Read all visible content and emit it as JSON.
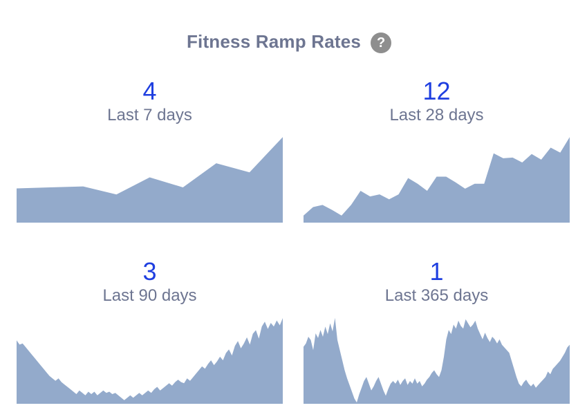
{
  "header": {
    "title": "Fitness Ramp Rates",
    "help_glyph": "?"
  },
  "fill_color": "#93aacb",
  "panels": [
    {
      "value": "4",
      "label": "Last 7 days",
      "series": [
        34,
        35,
        36,
        28,
        45,
        35,
        59,
        50,
        85
      ]
    },
    {
      "value": "12",
      "label": "Last 28 days",
      "series": [
        10,
        22,
        25,
        18,
        10,
        25,
        45,
        37,
        40,
        33,
        40,
        63,
        55,
        45,
        65,
        65,
        57,
        48,
        55,
        55,
        98,
        91,
        92,
        85,
        97,
        89,
        106,
        99,
        121
      ]
    },
    {
      "value": "3",
      "label": "Last 90 days",
      "series": [
        105,
        98,
        100,
        94,
        88,
        82,
        76,
        70,
        64,
        58,
        52,
        46,
        42,
        38,
        42,
        36,
        32,
        28,
        24,
        20,
        16,
        22,
        18,
        14,
        20,
        16,
        20,
        14,
        18,
        22,
        18,
        20,
        16,
        18,
        14,
        10,
        6,
        10,
        14,
        10,
        14,
        18,
        14,
        18,
        22,
        18,
        24,
        28,
        22,
        26,
        30,
        34,
        30,
        36,
        40,
        36,
        34,
        42,
        38,
        44,
        50,
        56,
        62,
        58,
        66,
        72,
        64,
        70,
        78,
        72,
        84,
        90,
        80,
        96,
        104,
        92,
        100,
        110,
        98,
        116,
        122,
        108,
        128,
        136,
        124,
        134,
        128,
        138,
        130,
        142
      ],
      "ymax": 150
    },
    {
      "value": "1",
      "label": "Last 365 days",
      "series": [
        85,
        90,
        100,
        95,
        80,
        105,
        98,
        110,
        100,
        115,
        104,
        120,
        108,
        128,
        95,
        80,
        65,
        50,
        38,
        28,
        18,
        8,
        2,
        14,
        24,
        34,
        40,
        30,
        20,
        26,
        34,
        40,
        30,
        20,
        12,
        22,
        30,
        34,
        30,
        36,
        28,
        34,
        38,
        28,
        34,
        30,
        38,
        30,
        34,
        26,
        30,
        36,
        40,
        46,
        50,
        44,
        40,
        50,
        70,
        96,
        110,
        104,
        118,
        112,
        124,
        116,
        112,
        126,
        120,
        114,
        118,
        124,
        112,
        104,
        96,
        106,
        98,
        92,
        100,
        96,
        90,
        96,
        88,
        84,
        80,
        76,
        64,
        52,
        40,
        30,
        26,
        32,
        36,
        30,
        26,
        30,
        24,
        28,
        32,
        36,
        40,
        48,
        44,
        52,
        56,
        60,
        64,
        70,
        76,
        84,
        88
      ],
      "ymax": 135
    }
  ]
}
